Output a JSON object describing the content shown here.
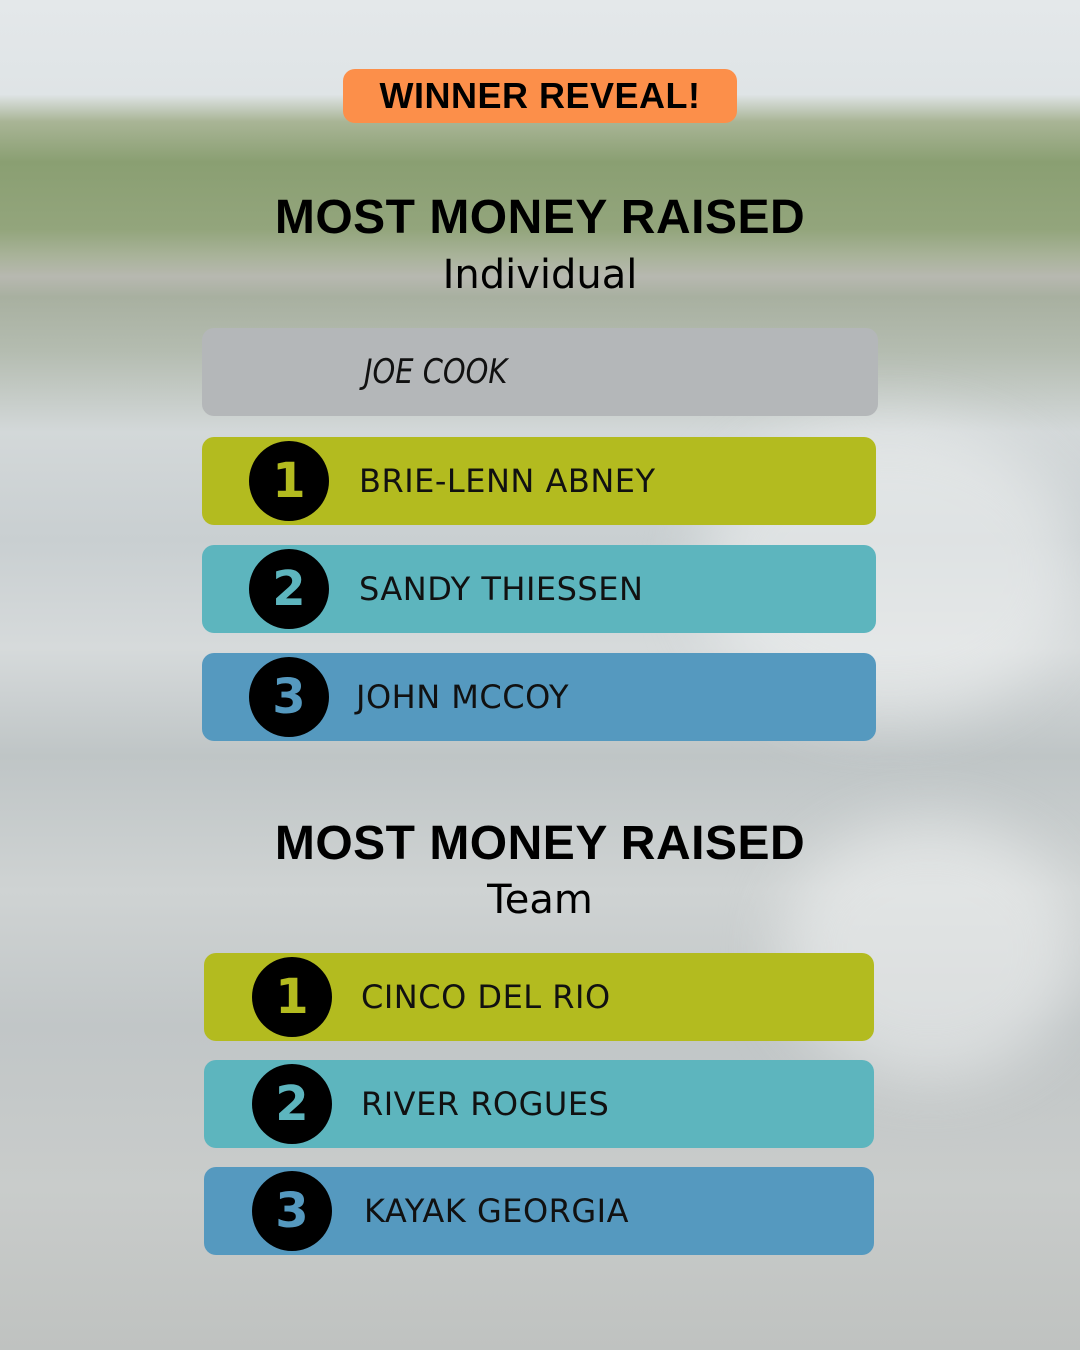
{
  "badge": "WINNER REVEAL!",
  "individual": {
    "title": "MOST MONEY RAISED",
    "subtitle": "Individual",
    "honoree": "JOE COOK",
    "ranks": [
      {
        "rank": "1",
        "name": "BRIE-LENN ABNEY"
      },
      {
        "rank": "2",
        "name": "SANDY THIESSEN"
      },
      {
        "rank": "3",
        "name": "JOHN MCCOY"
      }
    ]
  },
  "team": {
    "title": "MOST MONEY RAISED",
    "subtitle": "Team",
    "ranks": [
      {
        "rank": "1",
        "name": "CINCO DEL RIO"
      },
      {
        "rank": "2",
        "name": "RIVER ROGUES"
      },
      {
        "rank": "3",
        "name": "KAYAK GEORGIA"
      }
    ]
  },
  "colors": {
    "badge": "#fc8f4a",
    "honoree": "#b4b7b9",
    "first": "#b3bb1f",
    "second": "#5db5be",
    "third": "#5599bf"
  }
}
